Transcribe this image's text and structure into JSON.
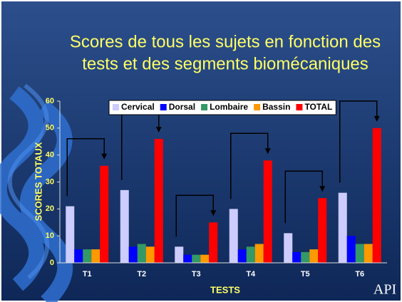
{
  "chart_data": {
    "type": "bar",
    "title": [
      "Scores de tous les sujets en fonction des",
      "tests et des segments biomécaniques"
    ],
    "x_label": "TESTS",
    "y_label": "SCORES TOTAUX",
    "categories": [
      "T1",
      "T2",
      "T3",
      "T4",
      "T5",
      "T6"
    ],
    "series": [
      {
        "name": "Cervical",
        "color": "#ccccff",
        "values": [
          21,
          27,
          6,
          20,
          11,
          26
        ]
      },
      {
        "name": "Dorsal",
        "color": "#0000ff",
        "values": [
          5,
          6,
          3,
          5,
          4,
          10
        ]
      },
      {
        "name": "Lombaire",
        "color": "#339966",
        "values": [
          5,
          7,
          3,
          6,
          4,
          7
        ]
      },
      {
        "name": "Bassin",
        "color": "#ff9900",
        "values": [
          5,
          6,
          3,
          7,
          5,
          7
        ]
      },
      {
        "name": "TOTAL",
        "color": "#ff0000",
        "values": [
          36,
          46,
          15,
          38,
          24,
          50
        ]
      }
    ],
    "ylim": [
      0,
      60
    ],
    "yticks": [
      0,
      10,
      20,
      30,
      40,
      50,
      60
    ],
    "legend": "top",
    "logo": "API"
  }
}
